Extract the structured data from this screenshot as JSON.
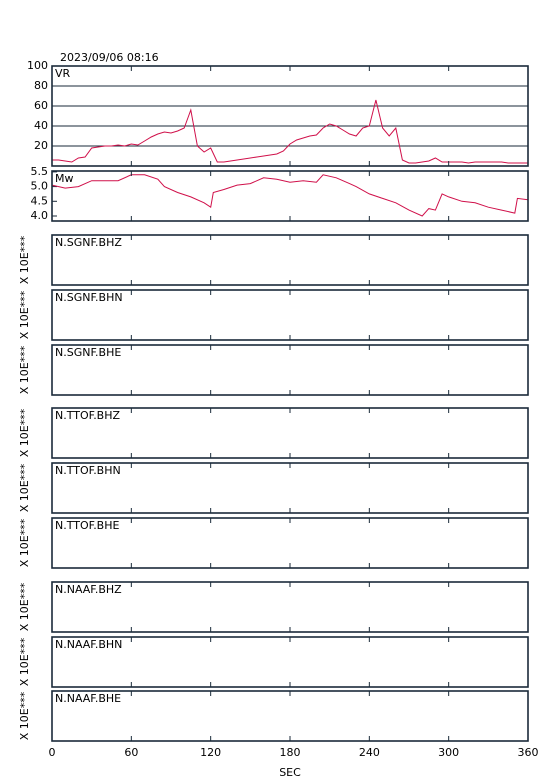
{
  "title": "2023/09/06  08:16",
  "axis": {
    "xlabel": "SEC",
    "xlim": [
      0,
      360
    ],
    "xticks": [
      0,
      60,
      120,
      180,
      240,
      300,
      360
    ]
  },
  "chart_data": [
    {
      "type": "line",
      "label": "VR",
      "color": "#d0104a",
      "grid": true,
      "xlim": [
        0,
        360
      ],
      "ylim": [
        0,
        100
      ],
      "yticks": [
        20,
        40,
        60,
        80,
        100
      ],
      "x": [
        0,
        5,
        10,
        15,
        20,
        25,
        30,
        35,
        40,
        45,
        50,
        55,
        60,
        65,
        70,
        75,
        80,
        85,
        90,
        95,
        100,
        105,
        110,
        115,
        120,
        125,
        130,
        135,
        140,
        145,
        150,
        155,
        160,
        165,
        170,
        175,
        180,
        185,
        190,
        195,
        200,
        205,
        210,
        215,
        220,
        225,
        230,
        235,
        240,
        245,
        250,
        255,
        260,
        265,
        270,
        275,
        280,
        285,
        290,
        295,
        300,
        305,
        310,
        315,
        320,
        325,
        330,
        335,
        340,
        345,
        350,
        355,
        360
      ],
      "values": [
        6,
        6,
        5,
        4,
        8,
        9,
        18,
        19,
        20,
        20,
        21,
        20,
        22,
        21,
        25,
        29,
        32,
        34,
        33,
        35,
        38,
        56,
        20,
        14,
        18,
        4,
        4,
        5,
        6,
        7,
        8,
        9,
        10,
        11,
        12,
        15,
        22,
        26,
        28,
        30,
        31,
        38,
        42,
        40,
        36,
        32,
        30,
        38,
        40,
        66,
        38,
        30,
        38,
        6,
        3,
        3,
        4,
        5,
        8,
        4,
        4,
        4,
        4,
        3,
        4,
        4,
        4,
        4,
        4,
        3,
        3,
        3,
        3
      ]
    },
    {
      "type": "line",
      "label": "Mw",
      "color": "#d0104a",
      "grid": false,
      "xlim": [
        0,
        360
      ],
      "ylim": [
        3.83,
        5.53
      ],
      "yticks": [
        {
          "value": 4,
          "label": "4.0"
        },
        4.5,
        {
          "value": 5,
          "label": "5.0"
        },
        5.5
      ],
      "x": [
        0,
        10,
        20,
        30,
        40,
        50,
        60,
        70,
        80,
        85,
        95,
        105,
        115,
        120,
        122,
        130,
        140,
        150,
        160,
        170,
        180,
        190,
        200,
        205,
        215,
        225,
        230,
        240,
        250,
        260,
        270,
        280,
        285,
        290,
        295,
        300,
        310,
        320,
        330,
        340,
        350,
        352,
        360
      ],
      "values": [
        5.05,
        4.95,
        5.0,
        5.2,
        5.2,
        5.2,
        5.4,
        5.4,
        5.25,
        5.0,
        4.8,
        4.65,
        4.45,
        4.3,
        4.8,
        4.9,
        5.05,
        5.1,
        5.3,
        5.25,
        5.15,
        5.2,
        5.15,
        5.4,
        5.3,
        5.1,
        5.0,
        4.75,
        4.6,
        4.45,
        4.2,
        4.0,
        4.25,
        4.2,
        4.75,
        4.65,
        4.5,
        4.45,
        4.3,
        4.2,
        4.1,
        4.6,
        4.55
      ]
    }
  ],
  "traces": [
    {
      "label": "N.SGNF.BHZ",
      "ylabel": "X 10E***"
    },
    {
      "label": "N.SGNF.BHN",
      "ylabel": "X 10E***"
    },
    {
      "label": "N.SGNF.BHE",
      "ylabel": "X 10E***"
    },
    {
      "label": "N.TTOF.BHZ",
      "ylabel": "X 10E***"
    },
    {
      "label": "N.TTOF.BHN",
      "ylabel": "X 10E***"
    },
    {
      "label": "N.TTOF.BHE",
      "ylabel": "X 10E***"
    },
    {
      "label": "N.NAAF.BHZ",
      "ylabel": "X 10E***"
    },
    {
      "label": "N.NAAF.BHN",
      "ylabel": "X 10E***"
    },
    {
      "label": "N.NAAF.BHE",
      "ylabel": "X 10E***"
    }
  ]
}
